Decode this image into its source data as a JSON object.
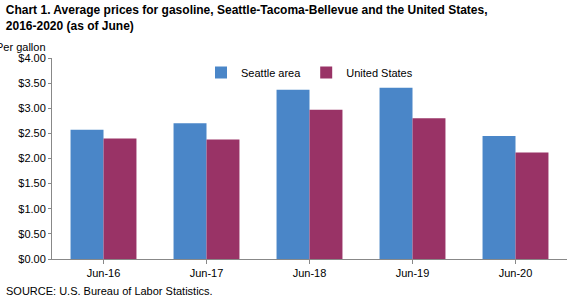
{
  "chart_data": {
    "type": "bar",
    "title": "Chart 1. Average prices for gasoline, Seattle-Tacoma-Bellevue and the United States, 2016-2020 (as of June)",
    "ylabel": "Per gallon",
    "source": "SOURCE: U.S. Bureau of Labor Statistics.",
    "categories": [
      "Jun-16",
      "Jun-17",
      "Jun-18",
      "Jun-19",
      "Jun-20"
    ],
    "series": [
      {
        "name": "Seattle area",
        "color": "#4a86c8",
        "values": [
          2.57,
          2.7,
          3.37,
          3.41,
          2.45
        ]
      },
      {
        "name": "United States",
        "color": "#993366",
        "values": [
          2.4,
          2.38,
          2.97,
          2.8,
          2.12
        ]
      }
    ],
    "ylim": [
      0,
      4
    ],
    "yticks": [
      {
        "value": 0,
        "label": "$0.00"
      },
      {
        "value": 0.5,
        "label": "$0.50"
      },
      {
        "value": 1,
        "label": "$1.00"
      },
      {
        "value": 1.5,
        "label": "$1.50"
      },
      {
        "value": 2,
        "label": "$2.00"
      },
      {
        "value": 2.5,
        "label": "$2.50"
      },
      {
        "value": 3,
        "label": "$3.00"
      },
      {
        "value": 3.5,
        "label": "$3.50"
      },
      {
        "value": 4,
        "label": "$4.00"
      }
    ],
    "grid": false,
    "legend": "top"
  }
}
